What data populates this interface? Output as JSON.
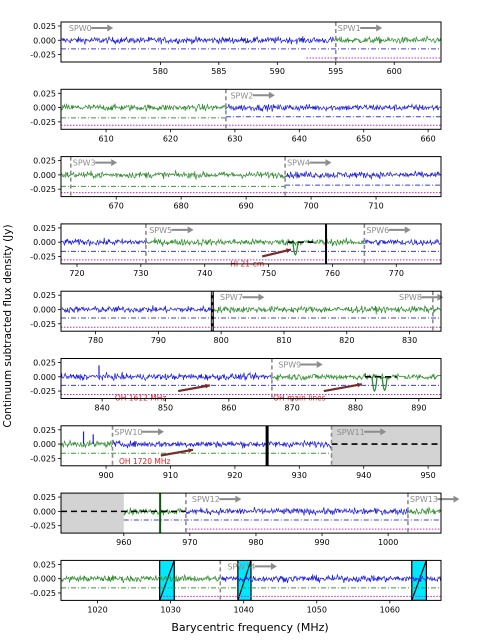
{
  "figure": {
    "ylabel": "Continuum subtracted flux density (Jy)",
    "xlabel": "Barycentric frequency (MHz)"
  },
  "colors": {
    "blue": "#1f1fd6",
    "green": "#2e8b2e",
    "spw_arrow": "#8c8c8c",
    "annotation_red": "#e02020",
    "annotation_arrow": "#7a2a2a",
    "noise_blue": "#3c3cd8",
    "noise_green": "#3a9a3a",
    "magenta": "#d020d0",
    "flag_cyan": "#00e8ff",
    "shade_gray": "#d3d3d3",
    "rfi_black": "#000000"
  },
  "chart_data": [
    {
      "type": "line",
      "xlim": [
        571.5,
        604
      ],
      "ylim": [
        -0.038,
        0.032
      ],
      "xticks": [
        580,
        585,
        590,
        595,
        600
      ],
      "yticks": [
        0.025,
        0.0,
        -0.025
      ],
      "ytick_labels": [
        "0.025",
        "0.000",
        "-0.025"
      ],
      "spw_labels": [
        {
          "text": "SPW0",
          "x": 572.0
        },
        {
          "text": "SPW1",
          "x": 595.0
        }
      ],
      "spw_boundaries": [
        595.0
      ],
      "segments": [
        {
          "x0": 571.5,
          "x1": 595.0,
          "color": "blue"
        },
        {
          "x0": 595.0,
          "x1": 604.0,
          "color": "green"
        }
      ],
      "noise_lines": [
        {
          "x0": 571.5,
          "x1": 604.0,
          "y": -0.015,
          "color": "blue"
        }
      ],
      "magenta_lines": [
        {
          "x0": 592.5,
          "x1": 604.0,
          "y": -0.031
        }
      ]
    },
    {
      "type": "line",
      "xlim": [
        603,
        662
      ],
      "ylim": [
        -0.038,
        0.032
      ],
      "xticks": [
        610,
        620,
        630,
        640,
        650,
        660
      ],
      "yticks": [
        0.025,
        0.0,
        -0.025
      ],
      "ytick_labels": [
        "0.025",
        "0.000",
        "-0.025"
      ],
      "spw_labels": [
        {
          "text": "SPW2",
          "x": 629.0
        }
      ],
      "spw_boundaries": [
        628.6
      ],
      "segments": [
        {
          "x0": 603,
          "x1": 628.6,
          "color": "green"
        },
        {
          "x0": 628.6,
          "x1": 662,
          "color": "blue"
        }
      ],
      "noise_lines": [
        {
          "x0": 603,
          "x1": 628.6,
          "y": -0.018,
          "color": "green"
        },
        {
          "x0": 628.6,
          "x1": 662,
          "y": -0.016,
          "color": "blue"
        }
      ],
      "magenta_lines": [
        {
          "x0": 603,
          "x1": 662,
          "y": -0.031
        }
      ]
    },
    {
      "type": "line",
      "xlim": [
        661.5,
        720
      ],
      "ylim": [
        -0.038,
        0.032
      ],
      "xticks": [
        670,
        680,
        690,
        700,
        710
      ],
      "yticks": [
        0.025,
        0.0,
        -0.025
      ],
      "ytick_labels": [
        "0.025",
        "0.000",
        "-0.025"
      ],
      "spw_labels": [
        {
          "text": "SPW3",
          "x": 663.0
        },
        {
          "text": "SPW4",
          "x": 696.0
        }
      ],
      "spw_boundaries": [
        663.0,
        696.0
      ],
      "segments": [
        {
          "x0": 661.5,
          "x1": 696.0,
          "color": "green"
        },
        {
          "x0": 696.0,
          "x1": 720,
          "color": "blue"
        }
      ],
      "noise_lines": [
        {
          "x0": 661.5,
          "x1": 696.0,
          "y": -0.02,
          "color": "green"
        },
        {
          "x0": 696.0,
          "x1": 720,
          "y": -0.018,
          "color": "blue"
        }
      ],
      "magenta_lines": [
        {
          "x0": 661.5,
          "x1": 720,
          "y": -0.031
        }
      ]
    },
    {
      "type": "line",
      "xlim": [
        717.5,
        777
      ],
      "ylim": [
        -0.038,
        0.032
      ],
      "xticks": [
        720,
        730,
        740,
        750,
        760,
        770
      ],
      "yticks": [
        0.025,
        0.0,
        -0.025
      ],
      "ytick_labels": [
        "0.025",
        "0.000",
        "-0.025"
      ],
      "spw_labels": [
        {
          "text": "SPW5",
          "x": 731.0
        },
        {
          "text": "SPW6",
          "x": 765.0
        }
      ],
      "spw_boundaries": [
        730.8,
        765.0
      ],
      "segments": [
        {
          "x0": 717.5,
          "x1": 730.8,
          "color": "blue"
        },
        {
          "x0": 730.8,
          "x1": 765.0,
          "color": "green"
        },
        {
          "x0": 765.0,
          "x1": 777,
          "color": "blue"
        }
      ],
      "noise_lines": [
        {
          "x0": 717.5,
          "x1": 777,
          "y": -0.016,
          "color": "blue"
        }
      ],
      "magenta_lines": [
        {
          "x0": 717.5,
          "x1": 777,
          "y": -0.031
        }
      ],
      "rfi_lines": [
        {
          "x": 759.0
        }
      ],
      "dashed_lines": [
        {
          "x0": 753.0,
          "x1": 757.0,
          "y": 0.0
        }
      ],
      "absorption": [
        {
          "x": 754.2,
          "depth": -0.032
        }
      ],
      "annotations": [
        {
          "text": "HI 21-cm",
          "x": 744,
          "y": -0.037,
          "arrow_from": [
            749,
            -0.025
          ],
          "arrow_to": [
            753.5,
            -0.013
          ]
        }
      ]
    },
    {
      "type": "line",
      "xlim": [
        774.5,
        835
      ],
      "ylim": [
        -0.038,
        0.032
      ],
      "xticks": [
        780,
        790,
        800,
        810,
        820,
        830
      ],
      "yticks": [
        0.025,
        0.0,
        -0.025
      ],
      "ytick_labels": [
        "0.025",
        "0.000",
        "-0.025"
      ],
      "spw_labels": [
        {
          "text": "SPW7",
          "x": 799.5
        },
        {
          "text": "SPW8",
          "x": 828.0
        }
      ],
      "spw_boundaries": [
        798.6,
        833.7
      ],
      "segments": [
        {
          "x0": 774.5,
          "x1": 798.6,
          "color": "blue"
        },
        {
          "x0": 798.6,
          "x1": 835,
          "color": "green"
        }
      ],
      "noise_lines": [
        {
          "x0": 774.5,
          "x1": 835,
          "y": -0.015,
          "color": "blue"
        }
      ],
      "magenta_lines": [
        {
          "x0": 774.5,
          "x1": 835,
          "y": -0.031
        }
      ],
      "rfi_lines": [
        {
          "x": 798.6,
          "width": 3
        }
      ]
    },
    {
      "type": "line",
      "xlim": [
        833.5,
        893.5
      ],
      "ylim": [
        -0.038,
        0.032
      ],
      "xticks": [
        840,
        850,
        860,
        870,
        880,
        890
      ],
      "yticks": [
        0.025,
        0.0,
        -0.025
      ],
      "ytick_labels": [
        "0.025",
        "0.000",
        "-0.025"
      ],
      "spw_labels": [
        {
          "text": "SPW9",
          "x": 867.5
        }
      ],
      "spw_boundaries": [
        866.8
      ],
      "segments": [
        {
          "x0": 833.5,
          "x1": 866.8,
          "color": "blue"
        },
        {
          "x0": 866.8,
          "x1": 893.5,
          "color": "green"
        }
      ],
      "noise_lines": [
        {
          "x0": 833.5,
          "x1": 893.5,
          "y": -0.015,
          "color": "blue"
        }
      ],
      "magenta_lines": [
        {
          "x0": 833.5,
          "x1": 893.5,
          "y": -0.031
        }
      ],
      "dashed_lines": [
        {
          "x0": 881.5,
          "x1": 886.5,
          "y": 0.0
        }
      ],
      "absorption": [
        {
          "x": 883.0,
          "depth": -0.036
        },
        {
          "x": 884.6,
          "depth": -0.034
        }
      ],
      "spikes": [
        {
          "x": 839.5,
          "height": 0.02
        }
      ],
      "annotations": [
        {
          "text": "OH 1612 MHz",
          "x": 842,
          "y": -0.036,
          "arrow_from": [
            852,
            -0.025
          ],
          "arrow_to": [
            857,
            -0.015
          ]
        },
        {
          "text": "OH main lines",
          "x": 867,
          "y": -0.036,
          "arrow_from": [
            875,
            -0.025
          ],
          "arrow_to": [
            881,
            -0.013
          ]
        }
      ]
    },
    {
      "type": "line",
      "xlim": [
        893,
        952
      ],
      "ylim": [
        -0.038,
        0.032
      ],
      "xticks": [
        900,
        910,
        920,
        930,
        940,
        950
      ],
      "yticks": [
        0.025,
        0.0,
        -0.025
      ],
      "ytick_labels": [
        "0.025",
        "0.000",
        "-0.025"
      ],
      "spw_labels": [
        {
          "text": "SPW10",
          "x": 901.0
        },
        {
          "text": "SPW11",
          "x": 935.5
        }
      ],
      "spw_boundaries": [
        901.0,
        935.0
      ],
      "segments": [
        {
          "x0": 893,
          "x1": 901.0,
          "color": "green"
        },
        {
          "x0": 901.0,
          "x1": 935.0,
          "color": "blue"
        }
      ],
      "noise_lines": [
        {
          "x0": 893,
          "x1": 935.0,
          "y": -0.016,
          "color": "green"
        }
      ],
      "magenta_lines": [],
      "rfi_lines": [
        {
          "x": 925.0,
          "width": 3
        }
      ],
      "shaded": [
        {
          "x0": 935.0,
          "x1": 952
        }
      ],
      "dashed_lines": [
        {
          "x0": 935.0,
          "x1": 952,
          "y": 0.0
        }
      ],
      "spikes": [
        {
          "x": 896.5,
          "height": 0.022
        },
        {
          "x": 898.0,
          "height": 0.017
        }
      ],
      "annotations": [
        {
          "text": "OH 1720 MHz",
          "x": 902,
          "y": -0.03,
          "arrow_from": [
            908.5,
            -0.02
          ],
          "arrow_to": [
            913.5,
            -0.01
          ]
        }
      ]
    },
    {
      "type": "line",
      "xlim": [
        950.5,
        1008
      ],
      "ylim": [
        -0.038,
        0.032
      ],
      "xticks": [
        960,
        970,
        980,
        990,
        1000
      ],
      "yticks": [
        0.025,
        0.0,
        -0.025
      ],
      "ytick_labels": [
        "0.025",
        "0.000",
        "-0.025"
      ],
      "spw_labels": [
        {
          "text": "SPW12",
          "x": 970.0
        },
        {
          "text": "SPW13",
          "x": 1003.0
        }
      ],
      "spw_boundaries": [
        969.4,
        1003.0
      ],
      "segments": [
        {
          "x0": 960.0,
          "x1": 969.4,
          "color": "green"
        },
        {
          "x0": 969.4,
          "x1": 1003.0,
          "color": "blue"
        },
        {
          "x0": 1003.0,
          "x1": 1008,
          "color": "green"
        }
      ],
      "noise_lines": [
        {
          "x0": 960.0,
          "x1": 1008,
          "y": -0.015,
          "color": "blue"
        }
      ],
      "magenta_lines": [
        {
          "x0": 969.4,
          "x1": 1008,
          "y": -0.031
        }
      ],
      "rfi_lines": [
        {
          "x": 965.5,
          "width": 2,
          "color": "green_dark"
        }
      ],
      "shaded": [
        {
          "x0": 950.5,
          "x1": 960.0
        }
      ],
      "dashed_lines": [
        {
          "x0": 950.5,
          "x1": 969.4,
          "y": 0.0
        }
      ]
    },
    {
      "type": "line",
      "xlim": [
        1015,
        1067
      ],
      "ylim": [
        -0.038,
        0.032
      ],
      "xticks": [
        1020,
        1030,
        1040,
        1050,
        1060
      ],
      "yticks": [
        0.025,
        0.0,
        -0.025
      ],
      "ytick_labels": [
        "0.025",
        "0.000",
        "-0.025"
      ],
      "spw_labels": [
        {
          "text": "SPW14",
          "x": 1037.5
        }
      ],
      "spw_boundaries": [
        1036.8
      ],
      "segments": [
        {
          "x0": 1015,
          "x1": 1036.8,
          "color": "green"
        },
        {
          "x0": 1036.8,
          "x1": 1067,
          "color": "blue"
        }
      ],
      "noise_lines": [
        {
          "x0": 1015,
          "x1": 1067,
          "y": -0.016,
          "color": "green"
        }
      ],
      "magenta_lines": [
        {
          "x0": 1029.0,
          "x1": 1067,
          "y": -0.031
        }
      ],
      "flagged": [
        {
          "x0": 1028.5,
          "x1": 1030.5
        },
        {
          "x0": 1039.2,
          "x1": 1041.0
        },
        {
          "x0": 1063.0,
          "x1": 1065.0
        }
      ]
    }
  ]
}
